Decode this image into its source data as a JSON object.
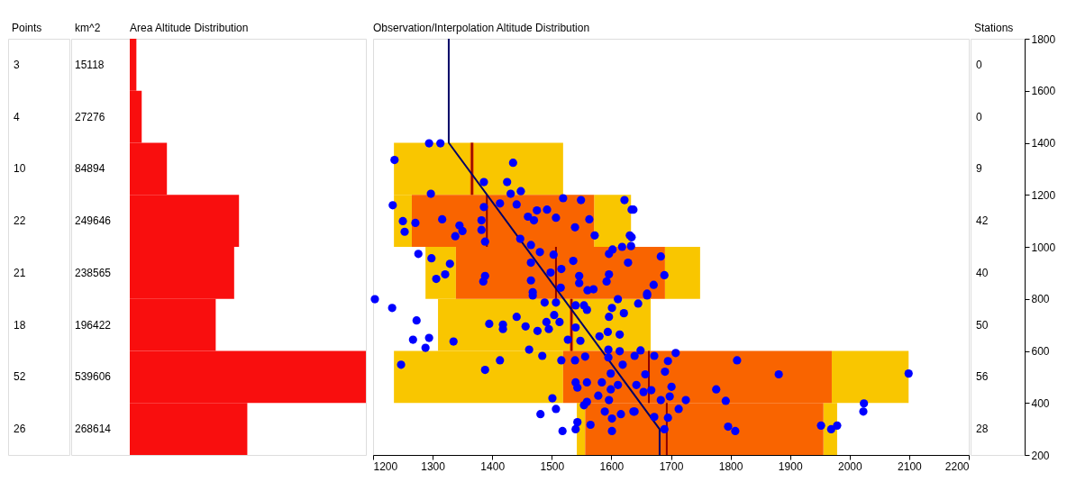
{
  "chart_data": [
    {
      "type": "other",
      "title": "Points",
      "annotations": [
        "3",
        "4",
        "10",
        "22",
        "21",
        "18",
        "52",
        "26"
      ]
    },
    {
      "type": "bar",
      "orientation": "horizontal",
      "title": "Area Altitude Distribution",
      "annotations": [
        "km^2"
      ],
      "categories": [
        null,
        null,
        null,
        null,
        null,
        null,
        null,
        null
      ],
      "values": [
        15118,
        27276,
        84894,
        249646,
        238565,
        196422,
        539606,
        268614
      ],
      "color": "#f90e0e",
      "data_labels": true,
      "xlim": [
        0,
        539606
      ]
    },
    {
      "type": "scatter",
      "title": "Observation/Interpolation Altitude Distribution",
      "xlim": [
        1200,
        2200
      ],
      "xticks": [
        1200,
        1300,
        1400,
        1500,
        1600,
        1700,
        1800,
        1900,
        2000,
        2100,
        2200
      ],
      "ylim": [
        200,
        1800
      ],
      "yticks": [
        200,
        400,
        600,
        800,
        1000,
        1200,
        1400,
        1600,
        1800
      ],
      "grid": false,
      "orientation": "horizontal",
      "series": [
        {
          "type": "box",
          "color": "#f96400",
          "x": [
            1300,
            1100,
            900,
            700,
            500,
            300
          ],
          "boxes": [
            {
              "low": 1235,
              "q1": 1366,
              "median": 1366,
              "q3": 1366,
              "high": 1519
            },
            {
              "low": 1235,
              "q1": 1265,
              "median": 1391,
              "q3": 1571,
              "high": 1633
            },
            {
              "low": 1288,
              "q1": 1339,
              "median": 1507,
              "q3": 1690,
              "high": 1749
            },
            {
              "low": 1309,
              "q1": 1533,
              "median": 1533,
              "q3": 1533,
              "high": 1666
            },
            {
              "low": 1235,
              "q1": 1519,
              "median": 1663,
              "q3": 1970,
              "high": 2099
            },
            {
              "low": 1542,
              "q1": 1556,
              "median": 1693,
              "q3": 1956,
              "high": 1979
            }
          ]
        },
        {
          "type": "line",
          "color": "#000066",
          "marker": "none",
          "line_style": "solid",
          "x": [
            1800,
            1400,
            299,
            200
          ],
          "values": [
            1327,
            1327,
            1681,
            1681
          ]
        },
        {
          "type": "scatter",
          "color": "#0000ff",
          "marker": "circle",
          "values": [
            1294,
            1313,
            1236,
            1435,
            1386,
            1425,
            1448,
            1431,
            1297,
            1233,
            1519,
            1549,
            1622,
            1634,
            1413,
            1441,
            1386,
            1475,
            1492,
            1460,
            1470,
            1507,
            1563,
            1539,
            1250,
            1271,
            1316,
            1253,
            1345,
            1350,
            1338,
            1382,
            1382,
            1388,
            1572,
            1631,
            1618,
            1633,
            1276,
            1298,
            1329,
            1321,
            1306,
            1447,
            1465,
            1480,
            1503,
            1465,
            1516,
            1536,
            1498,
            1465,
            1388,
            1385,
            1596,
            1602,
            1628,
            1596,
            1592,
            1546,
            1546,
            1515,
            1560,
            1570,
            1468,
            1637,
            1634,
            1683,
            1689,
            1671,
            1660,
            1203,
            1232,
            1273,
            1267,
            1294,
            1288,
            1335,
            1247,
            1395,
            1418,
            1418,
            1441,
            1456,
            1476,
            1491,
            1495,
            1504,
            1513,
            1488,
            1507,
            1468,
            1462,
            1484,
            1413,
            1388,
            1516,
            1527,
            1540,
            1548,
            1554,
            1540,
            1559,
            1580,
            1594,
            1596,
            1614,
            1621,
            1601,
            1611,
            1539,
            1556,
            1595,
            1595,
            1614,
            1619,
            1599,
            1540,
            1559,
            1584,
            1611,
            1543,
            1599,
            1578,
            1596,
            1559,
            1554,
            1501,
            1507,
            1481,
            1589,
            1616,
            1637,
            1601,
            1543,
            1565,
            1540,
            1518,
            1601,
            1645,
            1660,
            1639,
            1649,
            1672,
            1708,
            1695,
            1690,
            1811,
            1657,
            1881,
            2099,
            1642,
            1654,
            1667,
            1701,
            1698,
            1683,
            1725,
            1713,
            1776,
            1792,
            1639,
            1672,
            1695,
            1689,
            1796,
            1808,
            1952,
            1969,
            1979,
            2024,
            2023
          ],
          "x": [
            1398,
            1398,
            1334,
            1323,
            1249,
            1249,
            1214,
            1204,
            1204,
            1160,
            1187,
            1180,
            1180,
            1143,
            1167,
            1163,
            1153,
            1140,
            1143,
            1116,
            1102,
            1112,
            1106,
            1075,
            1099,
            1092,
            1106,
            1058,
            1082,
            1061,
            1041,
            1102,
            1065,
            1020,
            1044,
            1044,
            1000,
            1003,
            973,
            956,
            935,
            894,
            877,
            1031,
            1007,
            980,
            970,
            939,
            915,
            946,
            901,
            871,
            888,
            867,
            973,
            990,
            939,
            894,
            867,
            888,
            861,
            843,
            833,
            837,
            826,
            1143,
            1037,
            963,
            891,
            854,
            820,
            799,
            765,
            717,
            643,
            650,
            612,
            636,
            547,
            704,
            701,
            684,
            731,
            694,
            677,
            711,
            684,
            738,
            711,
            786,
            786,
            813,
            605,
            581,
            564,
            527,
            564,
            643,
            690,
            639,
            775,
            775,
            758,
            656,
            673,
            731,
            663,
            745,
            765,
            799,
            564,
            578,
            575,
            605,
            599,
            547,
            513,
            479,
            479,
            479,
            469,
            459,
            452,
            428,
            411,
            404,
            391,
            418,
            377,
            357,
            367,
            357,
            367,
            340,
            326,
            316,
            299,
            292,
            292,
            782,
            813,
            581,
            602,
            581,
            592,
            561,
            520,
            564,
            510,
            510,
            513,
            469,
            442,
            449,
            462,
            425,
            411,
            411,
            377,
            452,
            408,
            367,
            346,
            343,
            299,
            309,
            292,
            313,
            299,
            313,
            398,
            367
          ]
        }
      ]
    },
    {
      "type": "other",
      "title": "Stations",
      "annotations": [
        "0",
        "0",
        "9",
        "42",
        "40",
        "50",
        "56",
        "28"
      ]
    }
  ]
}
